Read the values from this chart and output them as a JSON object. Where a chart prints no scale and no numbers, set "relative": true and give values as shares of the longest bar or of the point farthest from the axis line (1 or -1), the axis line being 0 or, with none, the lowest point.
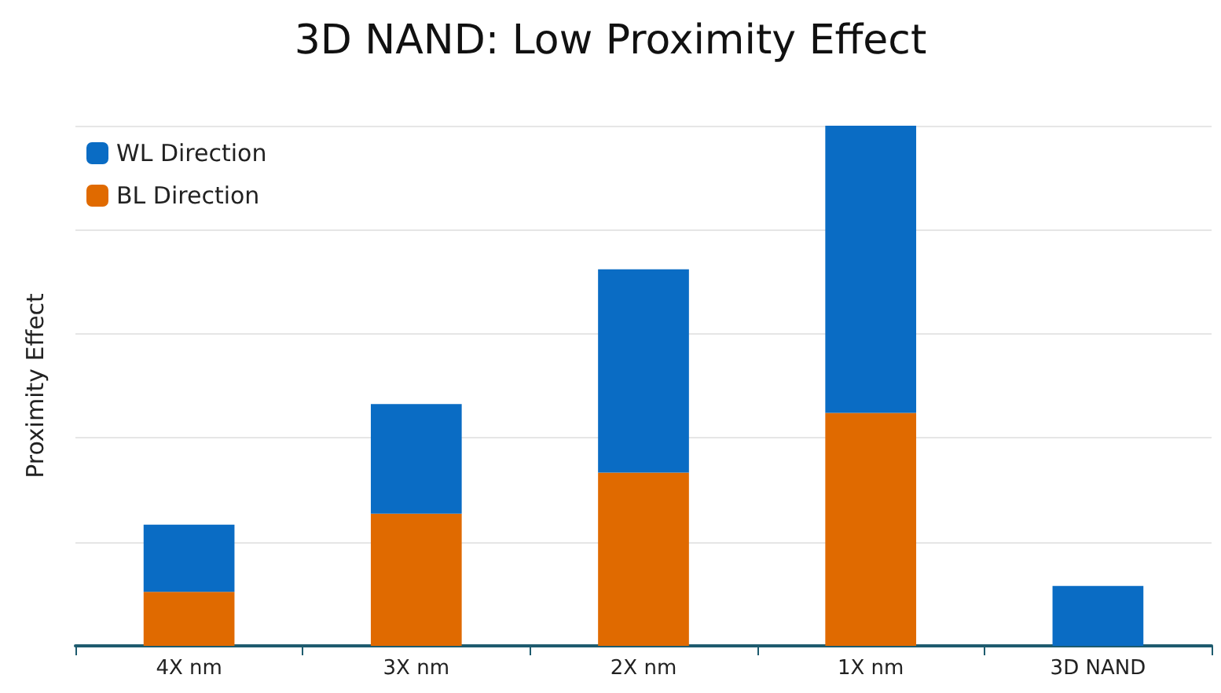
{
  "chart_data": {
    "type": "bar",
    "title": "3D NAND: Low Proximity Effect",
    "ylabel": "Proximity Effect",
    "categories": [
      "4X nm",
      "3X nm",
      "2X nm",
      "1X nm",
      "3D NAND"
    ],
    "stacked": true,
    "relative": true,
    "grid": "y",
    "legend": "top left",
    "series": [
      {
        "name": "BL Direction",
        "color": "#e06a00",
        "values": [
          0.104,
          0.254,
          0.333,
          0.448,
          null
        ]
      },
      {
        "name": "WL Direction",
        "color": "#0a6cc4",
        "values": [
          0.129,
          0.211,
          0.391,
          0.552,
          0.115
        ]
      }
    ]
  }
}
